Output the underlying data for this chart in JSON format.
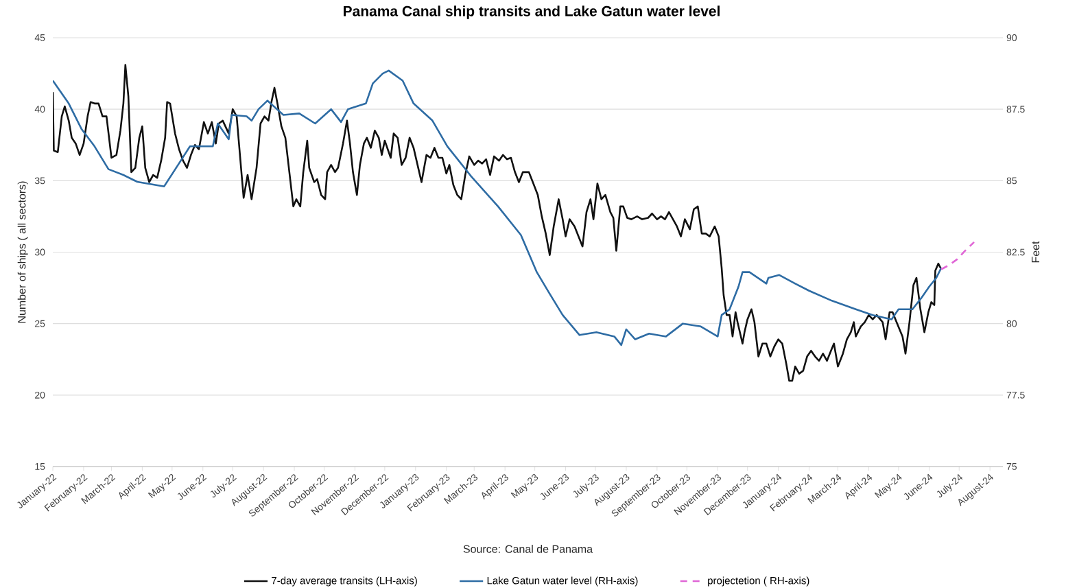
{
  "chart_data": {
    "type": "line",
    "title": "Panama Canal ship transits and Lake Gatun water level",
    "ylabel": "Number of ships ( all sectors)",
    "y2label": "Feet",
    "annotations": [
      "Source: Canal de Panama"
    ],
    "xlim": [
      "2022-01-01",
      "2024-08-14"
    ],
    "xticks": [
      {
        "value": "2022-01-01",
        "label": "January-22"
      },
      {
        "value": "2022-02-01",
        "label": "February-22"
      },
      {
        "value": "2022-03-01",
        "label": "March-22"
      },
      {
        "value": "2022-04-01",
        "label": "April-22"
      },
      {
        "value": "2022-05-01",
        "label": "May-22"
      },
      {
        "value": "2022-06-01",
        "label": "June-22"
      },
      {
        "value": "2022-07-01",
        "label": "July-22"
      },
      {
        "value": "2022-08-01",
        "label": "August-22"
      },
      {
        "value": "2022-09-01",
        "label": "September-22"
      },
      {
        "value": "2022-10-01",
        "label": "October-22"
      },
      {
        "value": "2022-11-01",
        "label": "November-22"
      },
      {
        "value": "2022-12-01",
        "label": "December-22"
      },
      {
        "value": "2023-01-01",
        "label": "January-23"
      },
      {
        "value": "2023-02-01",
        "label": "February-23"
      },
      {
        "value": "2023-03-01",
        "label": "March-23"
      },
      {
        "value": "2023-04-01",
        "label": "April-23"
      },
      {
        "value": "2023-05-01",
        "label": "May-23"
      },
      {
        "value": "2023-06-01",
        "label": "June-23"
      },
      {
        "value": "2023-07-01",
        "label": "July-23"
      },
      {
        "value": "2023-08-01",
        "label": "August-23"
      },
      {
        "value": "2023-09-01",
        "label": "September-23"
      },
      {
        "value": "2023-10-01",
        "label": "October-23"
      },
      {
        "value": "2023-11-01",
        "label": "November-23"
      },
      {
        "value": "2023-12-01",
        "label": "December-23"
      },
      {
        "value": "2024-01-01",
        "label": "January-24"
      },
      {
        "value": "2024-02-01",
        "label": "February-24"
      },
      {
        "value": "2024-03-01",
        "label": "March-24"
      },
      {
        "value": "2024-04-01",
        "label": "April-24"
      },
      {
        "value": "2024-05-01",
        "label": "May-24"
      },
      {
        "value": "2024-06-01",
        "label": "June-24"
      },
      {
        "value": "2024-07-01",
        "label": "July-24"
      },
      {
        "value": "2024-08-01",
        "label": "August-24"
      }
    ],
    "ylim": [
      15,
      45
    ],
    "yticks": [
      15,
      20,
      25,
      30,
      35,
      40,
      45
    ],
    "y2lim": [
      75,
      90
    ],
    "y2ticks": [
      75,
      77.5,
      80,
      82.5,
      85,
      87.5,
      90
    ],
    "grid": "y",
    "legend": "bottom",
    "series": [
      {
        "name": "7-day average transits (LH-axis)",
        "color": "#111111",
        "x": [
          "2022-01-01",
          "2022-01-02",
          "2022-01-06",
          "2022-01-10",
          "2022-01-13",
          "2022-01-17",
          "2022-01-20",
          "2022-01-24",
          "2022-01-28",
          "2022-02-01",
          "2022-02-05",
          "2022-02-08",
          "2022-02-12",
          "2022-02-16",
          "2022-02-20",
          "2022-02-24",
          "2022-03-01",
          "2022-03-06",
          "2022-03-10",
          "2022-03-13",
          "2022-03-15",
          "2022-03-18",
          "2022-03-21",
          "2022-03-25",
          "2022-03-29",
          "2022-04-01",
          "2022-04-04",
          "2022-04-08",
          "2022-04-12",
          "2022-04-16",
          "2022-04-20",
          "2022-04-24",
          "2022-04-26",
          "2022-04-29",
          "2022-05-04",
          "2022-05-08",
          "2022-05-12",
          "2022-05-16",
          "2022-05-20",
          "2022-05-24",
          "2022-05-28",
          "2022-06-02",
          "2022-06-06",
          "2022-06-10",
          "2022-06-14",
          "2022-06-17",
          "2022-06-21",
          "2022-06-27",
          "2022-07-01",
          "2022-07-05",
          "2022-07-10",
          "2022-07-12",
          "2022-07-16",
          "2022-07-20",
          "2022-07-25",
          "2022-07-29",
          "2022-08-02",
          "2022-08-06",
          "2022-08-09",
          "2022-08-12",
          "2022-08-15",
          "2022-08-19",
          "2022-08-23",
          "2022-08-27",
          "2022-08-31",
          "2022-09-03",
          "2022-09-07",
          "2022-09-10",
          "2022-09-14",
          "2022-09-16",
          "2022-09-21",
          "2022-09-24",
          "2022-09-28",
          "2022-10-02",
          "2022-10-04",
          "2022-10-08",
          "2022-10-12",
          "2022-10-15",
          "2022-10-20",
          "2022-10-24",
          "2022-10-27",
          "2022-10-30",
          "2022-11-03",
          "2022-11-06",
          "2022-11-10",
          "2022-11-13",
          "2022-11-17",
          "2022-11-21",
          "2022-11-25",
          "2022-11-28",
          "2022-12-01",
          "2022-12-07",
          "2022-12-10",
          "2022-12-14",
          "2022-12-18",
          "2022-12-22",
          "2022-12-26",
          "2022-12-30",
          "2023-01-03",
          "2023-01-07",
          "2023-01-12",
          "2023-01-16",
          "2023-01-20",
          "2023-01-24",
          "2023-01-28",
          "2023-02-01",
          "2023-02-04",
          "2023-02-08",
          "2023-02-12",
          "2023-02-16",
          "2023-02-20",
          "2023-02-24",
          "2023-03-01",
          "2023-03-05",
          "2023-03-09",
          "2023-03-13",
          "2023-03-17",
          "2023-03-21",
          "2023-03-26",
          "2023-03-30",
          "2023-04-03",
          "2023-04-07",
          "2023-04-11",
          "2023-04-15",
          "2023-04-19",
          "2023-04-25",
          "2023-04-29",
          "2023-05-04",
          "2023-05-08",
          "2023-05-12",
          "2023-05-16",
          "2023-05-20",
          "2023-05-25",
          "2023-05-29",
          "2023-06-01",
          "2023-06-05",
          "2023-06-10",
          "2023-06-14",
          "2023-06-18",
          "2023-06-22",
          "2023-06-26",
          "2023-06-29",
          "2023-07-03",
          "2023-07-07",
          "2023-07-11",
          "2023-07-16",
          "2023-07-19",
          "2023-07-22",
          "2023-07-26",
          "2023-07-29",
          "2023-08-02",
          "2023-08-06",
          "2023-08-12",
          "2023-08-17",
          "2023-08-23",
          "2023-08-27",
          "2023-09-01",
          "2023-09-05",
          "2023-09-09",
          "2023-09-13",
          "2023-09-17",
          "2023-09-21",
          "2023-09-25",
          "2023-09-29",
          "2023-10-04",
          "2023-10-08",
          "2023-10-12",
          "2023-10-16",
          "2023-10-20",
          "2023-10-24",
          "2023-10-29",
          "2023-11-02",
          "2023-11-05",
          "2023-11-07",
          "2023-11-10",
          "2023-11-13",
          "2023-11-16",
          "2023-11-19",
          "2023-11-21",
          "2023-11-26",
          "2023-11-28",
          "2023-12-01",
          "2023-12-05",
          "2023-12-08",
          "2023-12-12",
          "2023-12-16",
          "2023-12-20",
          "2023-12-24",
          "2023-12-28",
          "2024-01-01",
          "2024-01-05",
          "2024-01-09",
          "2024-01-12",
          "2024-01-15",
          "2024-01-18",
          "2024-01-22",
          "2024-01-26",
          "2024-01-30",
          "2024-02-03",
          "2024-02-07",
          "2024-02-11",
          "2024-02-15",
          "2024-02-19",
          "2024-02-23",
          "2024-02-26",
          "2024-03-01",
          "2024-03-06",
          "2024-03-10",
          "2024-03-14",
          "2024-03-17",
          "2024-03-19",
          "2024-03-24",
          "2024-03-28",
          "2024-04-01",
          "2024-04-05",
          "2024-04-09",
          "2024-04-15",
          "2024-04-18",
          "2024-04-22",
          "2024-04-25",
          "2024-04-29",
          "2024-05-05",
          "2024-05-08",
          "2024-05-12",
          "2024-05-16",
          "2024-05-19",
          "2024-05-23",
          "2024-05-27",
          "2024-05-31",
          "2024-06-03",
          "2024-06-06",
          "2024-06-07",
          "2024-06-10",
          "2024-06-13"
        ],
        "values": [
          41.2,
          37.1,
          37.0,
          39.5,
          40.2,
          39.2,
          38.0,
          37.6,
          36.8,
          37.6,
          39.5,
          40.5,
          40.4,
          40.4,
          39.5,
          39.5,
          36.6,
          36.8,
          38.5,
          40.4,
          43.1,
          40.9,
          35.6,
          35.9,
          38.0,
          38.8,
          35.9,
          34.9,
          35.4,
          35.2,
          36.4,
          38.0,
          40.5,
          40.4,
          38.3,
          37.2,
          36.4,
          35.9,
          36.8,
          37.5,
          37.2,
          39.1,
          38.3,
          39.1,
          37.6,
          39.0,
          39.2,
          38.3,
          40.0,
          39.5,
          35.4,
          33.8,
          35.4,
          33.7,
          35.9,
          39.0,
          39.5,
          39.2,
          40.5,
          41.5,
          40.4,
          38.8,
          38.0,
          35.6,
          33.2,
          33.7,
          33.2,
          35.6,
          37.8,
          35.9,
          34.9,
          35.1,
          34.0,
          33.7,
          35.6,
          36.1,
          35.6,
          35.9,
          37.6,
          39.2,
          37.6,
          35.6,
          34.0,
          36.1,
          37.6,
          38.0,
          37.3,
          38.5,
          38.0,
          36.8,
          37.8,
          36.6,
          38.3,
          38.0,
          36.1,
          36.6,
          38.0,
          37.3,
          36.1,
          34.9,
          36.8,
          36.6,
          37.3,
          36.6,
          36.6,
          35.5,
          36.1,
          34.7,
          34.0,
          33.7,
          35.4,
          36.7,
          36.1,
          36.4,
          36.2,
          36.5,
          35.4,
          36.7,
          36.4,
          36.8,
          36.5,
          36.6,
          35.6,
          34.9,
          35.6,
          35.6,
          34.9,
          34.0,
          32.5,
          31.3,
          29.8,
          31.8,
          33.7,
          32.3,
          31.1,
          32.3,
          31.8,
          31.1,
          30.4,
          32.8,
          33.7,
          32.3,
          34.8,
          33.7,
          34.0,
          32.8,
          32.4,
          30.1,
          33.2,
          33.2,
          32.4,
          32.3,
          32.5,
          32.3,
          32.4,
          32.7,
          32.3,
          32.5,
          32.3,
          32.8,
          32.3,
          31.8,
          31.1,
          32.3,
          31.6,
          33.0,
          33.2,
          31.3,
          31.3,
          31.1,
          31.8,
          31.1,
          28.9,
          27.0,
          25.6,
          25.6,
          24.1,
          25.8,
          25.1,
          23.6,
          24.4,
          25.3,
          26.0,
          25.1,
          22.7,
          23.6,
          23.6,
          22.7,
          23.4,
          23.9,
          23.6,
          22.2,
          21.0,
          21.0,
          22.0,
          21.5,
          21.7,
          22.7,
          23.1,
          22.7,
          22.4,
          22.9,
          22.4,
          23.1,
          23.6,
          22.0,
          22.9,
          23.9,
          24.4,
          25.1,
          24.1,
          24.8,
          25.1,
          25.6,
          25.3,
          25.6,
          25.1,
          23.9,
          25.8,
          25.8,
          25.1,
          24.1,
          22.9,
          25.1,
          27.7,
          28.2,
          26.0,
          24.4,
          25.8,
          26.5,
          26.3,
          28.7,
          29.2,
          28.8
        ]
      },
      {
        "name": "Lake Gatun water level (RH-axis)",
        "color": "#2e6ca4",
        "axis": "y2",
        "x": [
          "2022-01-01",
          "2022-01-17",
          "2022-01-30",
          "2022-02-12",
          "2022-02-26",
          "2022-03-13",
          "2022-03-27",
          "2022-04-23",
          "2022-05-07",
          "2022-05-19",
          "2022-06-11",
          "2022-06-16",
          "2022-06-27",
          "2022-06-30",
          "2022-07-15",
          "2022-07-20",
          "2022-07-27",
          "2022-08-05",
          "2022-08-21",
          "2022-09-06",
          "2022-09-22",
          "2022-10-08",
          "2022-10-18",
          "2022-10-25",
          "2022-11-12",
          "2022-11-19",
          "2022-11-29",
          "2022-12-05",
          "2022-12-19",
          "2022-12-30",
          "2023-01-18",
          "2023-02-02",
          "2023-02-26",
          "2023-03-25",
          "2023-04-17",
          "2023-05-03",
          "2023-05-15",
          "2023-05-29",
          "2023-06-15",
          "2023-07-02",
          "2023-07-20",
          "2023-07-27",
          "2023-08-01",
          "2023-08-10",
          "2023-08-24",
          "2023-09-10",
          "2023-09-27",
          "2023-10-15",
          "2023-11-01",
          "2023-11-05",
          "2023-11-13",
          "2023-11-22",
          "2023-11-26",
          "2023-12-03",
          "2023-12-20",
          "2023-12-22",
          "2024-01-02",
          "2024-01-18",
          "2024-02-01",
          "2024-02-24",
          "2024-03-19",
          "2024-04-05",
          "2024-04-24",
          "2024-05-01",
          "2024-05-15",
          "2024-05-24",
          "2024-06-01",
          "2024-06-08",
          "2024-06-13"
        ],
        "values": [
          88.5,
          87.7,
          86.8,
          86.2,
          85.4,
          85.2,
          84.96,
          84.8,
          85.55,
          86.2,
          86.2,
          87.0,
          86.45,
          87.3,
          87.25,
          87.1,
          87.5,
          87.8,
          87.3,
          87.35,
          87.0,
          87.5,
          87.05,
          87.5,
          87.7,
          88.4,
          88.75,
          88.85,
          88.5,
          87.7,
          87.1,
          86.2,
          85.15,
          84.1,
          83.1,
          81.8,
          81.1,
          80.3,
          79.6,
          79.7,
          79.55,
          79.25,
          79.8,
          79.45,
          79.65,
          79.55,
          80.0,
          79.9,
          79.55,
          80.3,
          80.5,
          81.3,
          81.8,
          81.8,
          81.4,
          81.6,
          81.7,
          81.4,
          81.15,
          80.8,
          80.5,
          80.3,
          80.15,
          80.5,
          80.5,
          80.9,
          81.3,
          81.6,
          81.95
        ]
      },
      {
        "name": "projectetion ( RH-axis)",
        "color": "#e066d6",
        "axis": "y2",
        "line_style": "dashed",
        "x": [
          "2024-06-13",
          "2024-06-21",
          "2024-06-29",
          "2024-07-07",
          "2024-07-16"
        ],
        "values": [
          81.9,
          82.05,
          82.25,
          82.55,
          82.85
        ]
      }
    ]
  }
}
